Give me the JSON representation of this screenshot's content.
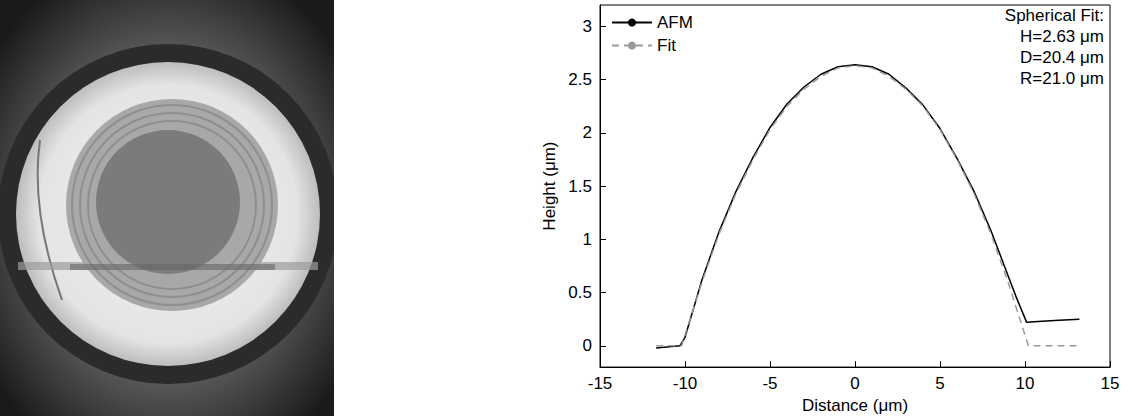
{
  "chart_data": {
    "type": "line",
    "xlabel": "Distance (μm)",
    "ylabel": "Height (μm)",
    "xlim": [
      -15,
      15
    ],
    "xticks": [
      -15,
      -10,
      -5,
      0,
      5,
      10,
      15
    ],
    "ylim": [
      -0.2,
      3.2
    ],
    "yticks": [
      0,
      0.5,
      1,
      1.5,
      2,
      2.5,
      3
    ],
    "grid": false,
    "legend": "upper left",
    "annotations": [
      "Spherical Fit:",
      "H=2.63 μm",
      "D=20.4 μm",
      "R=21.0 μm"
    ],
    "series": [
      {
        "name": "AFM",
        "color": "#000000",
        "line_style": "solid",
        "x": [
          -11.7,
          -10.3,
          -10.0,
          -9.5,
          -9,
          -8,
          -7,
          -6,
          -5,
          -4,
          -3,
          -2,
          -1,
          0,
          1,
          2,
          3,
          4,
          5,
          6,
          7,
          8,
          9,
          9.5,
          10.1,
          11,
          12,
          13.2
        ],
        "values": [
          -0.02,
          0.0,
          0.08,
          0.35,
          0.62,
          1.07,
          1.45,
          1.77,
          2.05,
          2.27,
          2.43,
          2.55,
          2.62,
          2.64,
          2.62,
          2.55,
          2.42,
          2.26,
          2.04,
          1.76,
          1.45,
          1.08,
          0.66,
          0.45,
          0.22,
          0.23,
          0.24,
          0.25
        ]
      },
      {
        "name": "Fit",
        "color": "#999999",
        "line_style": "dashed",
        "x": [
          -11.7,
          -10.2,
          -10,
          -9,
          -8,
          -7,
          -6,
          -5,
          -4,
          -3,
          -2,
          -1,
          0,
          1,
          2,
          3,
          4,
          5,
          6,
          7,
          8,
          9,
          10,
          10.2,
          13.2
        ],
        "values": [
          0,
          0,
          0.1,
          0.6,
          1.05,
          1.43,
          1.75,
          2.03,
          2.25,
          2.41,
          2.53,
          2.61,
          2.63,
          2.61,
          2.53,
          2.41,
          2.25,
          2.03,
          1.75,
          1.43,
          1.05,
          0.6,
          0.1,
          0,
          0
        ]
      }
    ]
  }
}
